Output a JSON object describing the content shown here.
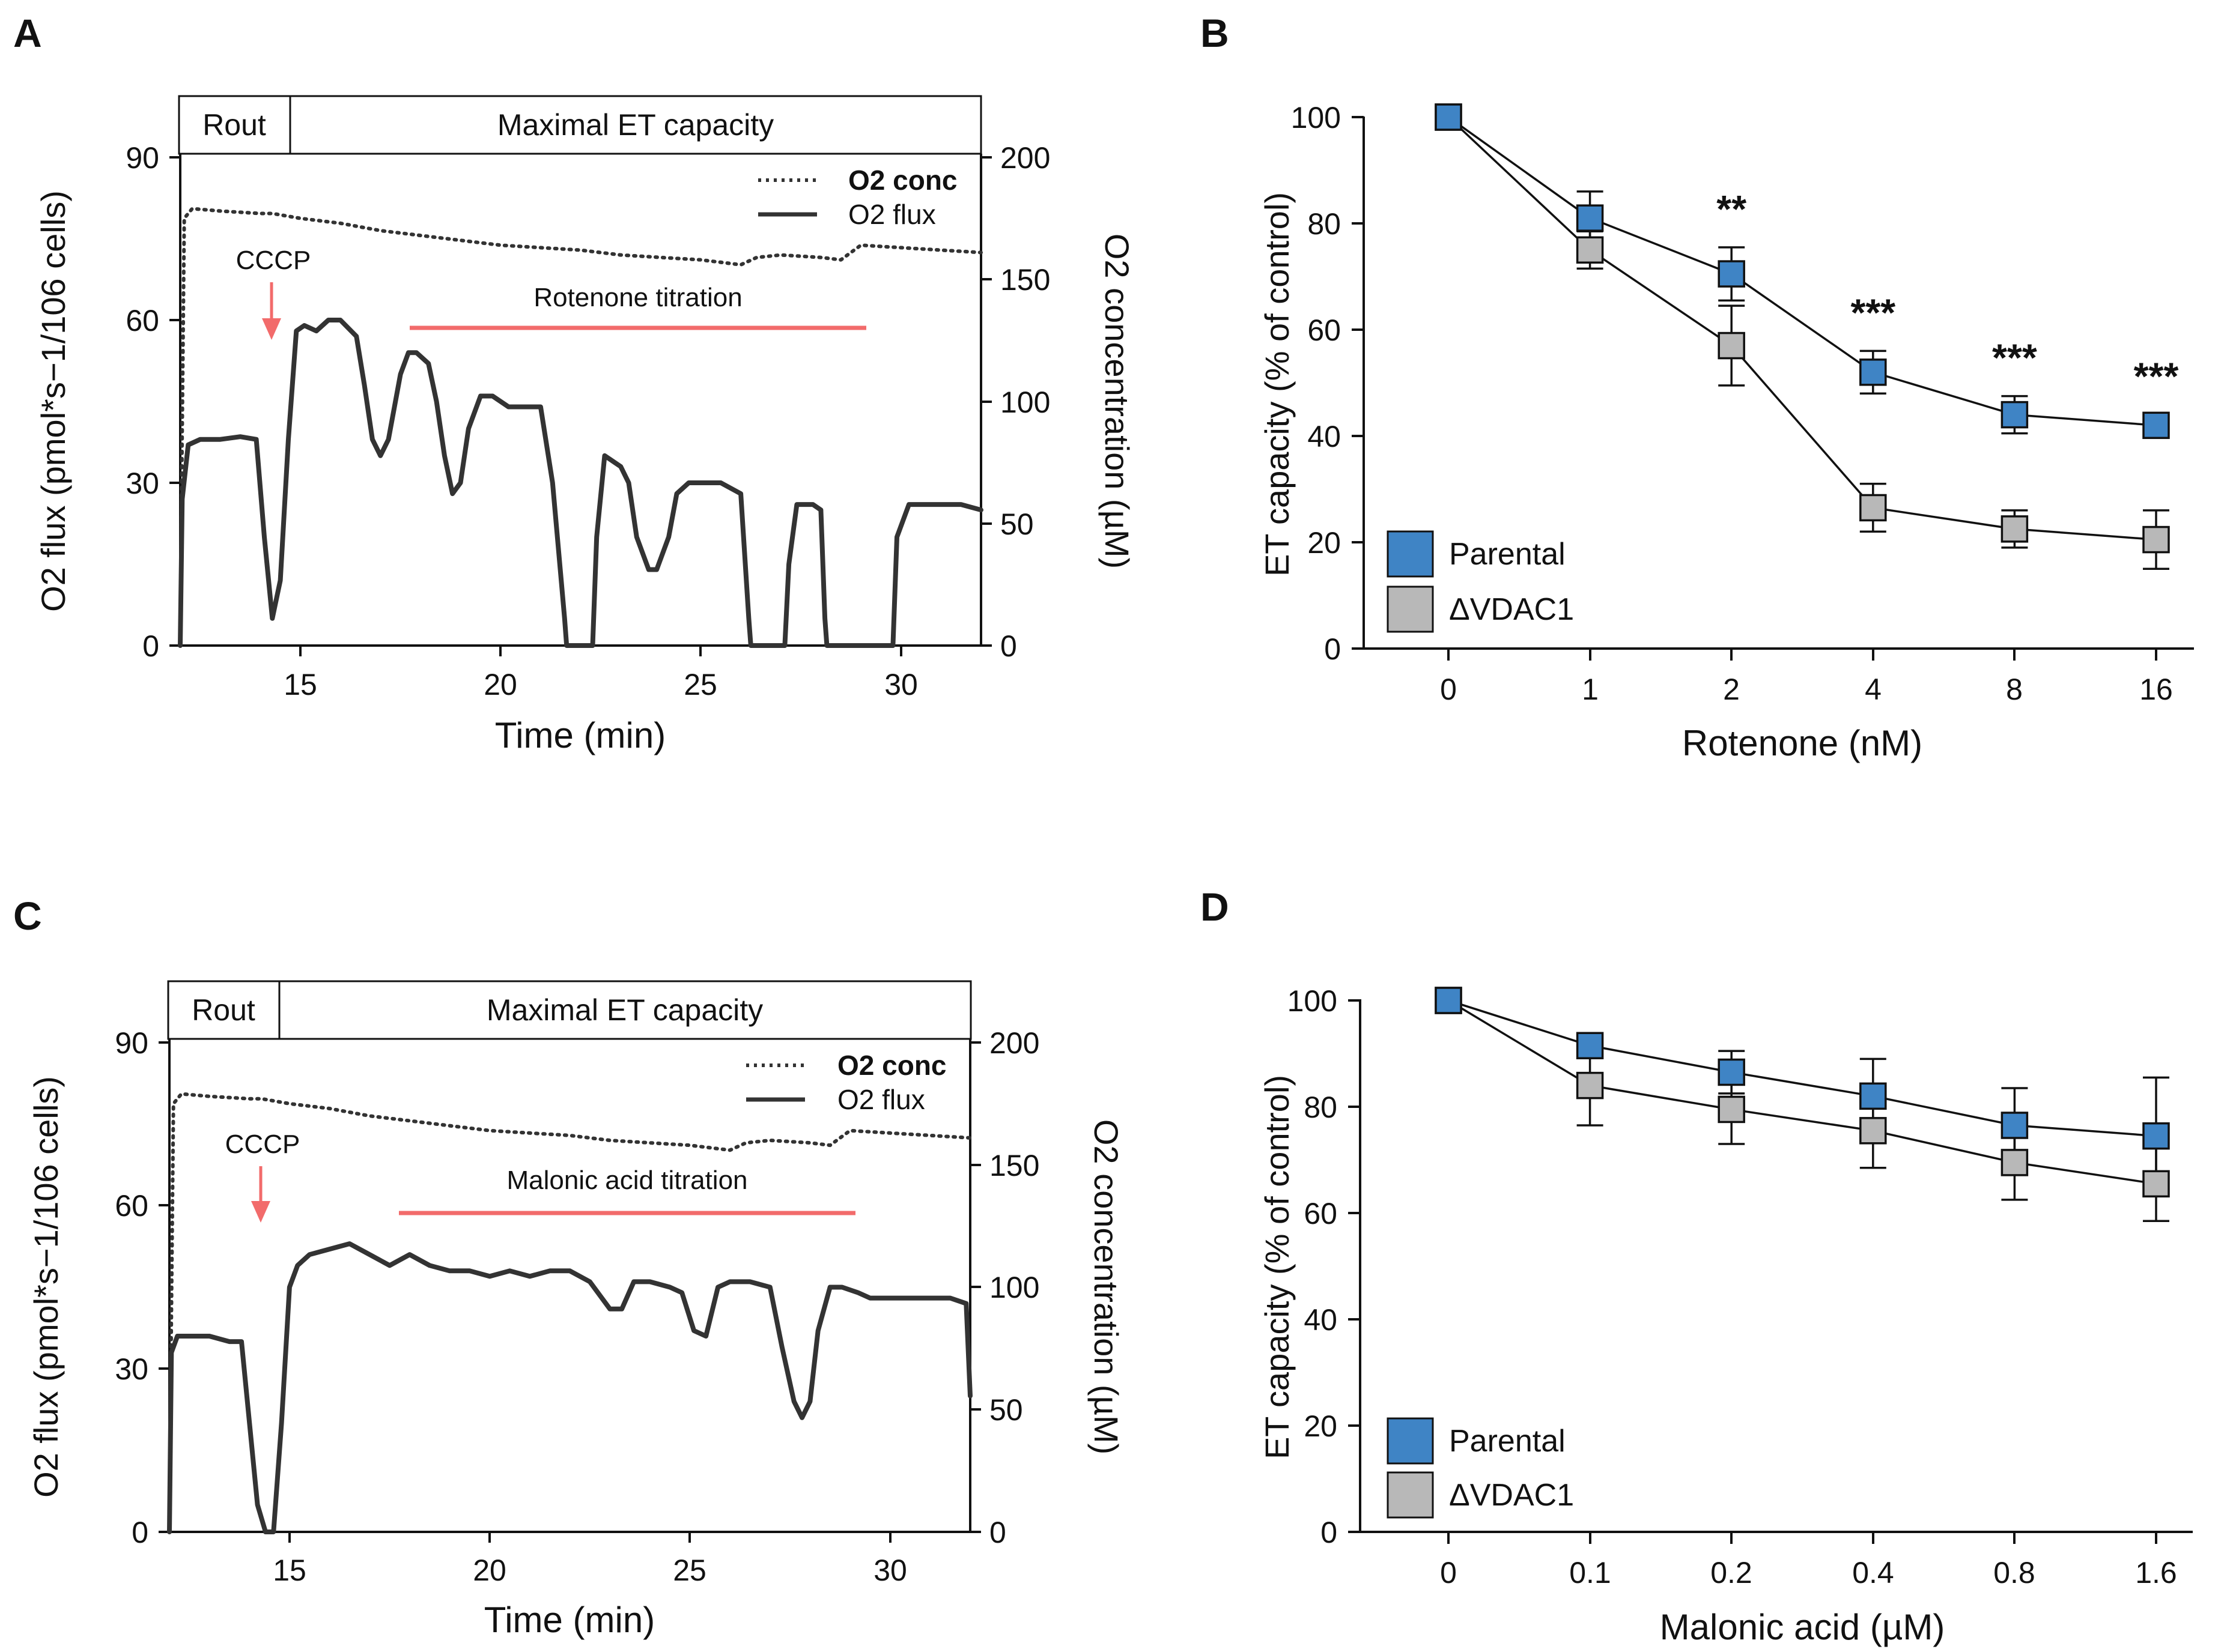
{
  "colors": {
    "axis": "#111111",
    "trace": "#333333",
    "titration": "#f26b6b",
    "parental": "#3f84c5",
    "vdac1": "#b8b8b8"
  },
  "panels": {
    "A": {
      "letter": "A",
      "phase_rout": "Rout",
      "phase_max": "Maximal ET capacity",
      "legend_conc": "O2 conc",
      "legend_flux": "O2 flux",
      "cccp_label": "CCCP",
      "titration_label": "Rotenone titration"
    },
    "B": {
      "letter": "B",
      "legend_parental": "Parental",
      "legend_vdac1": "ΔVDAC1"
    },
    "C": {
      "letter": "C",
      "phase_rout": "Rout",
      "phase_max": "Maximal ET capacity",
      "legend_conc": "O2 conc",
      "legend_flux": "O2 flux",
      "cccp_label": "CCCP",
      "titration_label": "Malonic acid titration"
    },
    "D": {
      "letter": "D",
      "legend_parental": "Parental",
      "legend_vdac1": "ΔVDAC1"
    }
  },
  "chart_data": [
    {
      "id": "A",
      "type": "line",
      "title": "",
      "xlabel": "Time (min)",
      "ylabel": "O2 flux (pmol*s−1/106 cells)",
      "y2label": "O2 concentration (µM)",
      "xlim": [
        12,
        32
      ],
      "ylim": [
        0,
        90
      ],
      "y2lim": [
        0,
        200
      ],
      "xticks": [
        15,
        20,
        25,
        30
      ],
      "yticks": [
        0,
        30,
        60,
        90
      ],
      "y2ticks": [
        0,
        50,
        100,
        150,
        200
      ],
      "phases": [
        {
          "label": "Rout",
          "start": 12,
          "end": 14.7
        },
        {
          "label": "Maximal ET capacity",
          "start": 14.7,
          "end": 32
        }
      ],
      "annotations": [
        {
          "text": "CCCP",
          "x": 14.3,
          "type": "arrow"
        },
        {
          "text": "Rotenone titration",
          "start": 17.7,
          "end": 29.1,
          "type": "bar"
        }
      ],
      "series": [
        {
          "name": "O2 flux",
          "axis": "left",
          "style": "solid",
          "x": [
            12.0,
            12.05,
            12.2,
            12.5,
            13.0,
            13.5,
            13.9,
            14.1,
            14.3,
            14.5,
            14.7,
            14.9,
            15.1,
            15.4,
            15.7,
            16.0,
            16.4,
            16.6,
            16.8,
            17.0,
            17.2,
            17.5,
            17.7,
            17.9,
            18.2,
            18.4,
            18.6,
            18.8,
            19.0,
            19.2,
            19.5,
            19.8,
            20.0,
            20.2,
            20.5,
            21.0,
            21.3,
            21.6,
            21.65,
            22.3,
            22.4,
            22.6,
            23.0,
            23.2,
            23.4,
            23.7,
            23.9,
            24.2,
            24.4,
            24.7,
            25.0,
            25.5,
            26.0,
            26.2,
            26.25,
            27.1,
            27.2,
            27.4,
            27.8,
            28.0,
            28.1,
            28.15,
            29.8,
            29.9,
            30.2,
            30.8,
            31.5,
            32.0
          ],
          "y": [
            0,
            27,
            37,
            38,
            38,
            38.5,
            38,
            20,
            5,
            12,
            38,
            58,
            59,
            58,
            60,
            60,
            57,
            48,
            38,
            35,
            38,
            50,
            54,
            54,
            52,
            45,
            35,
            28,
            30,
            40,
            46,
            46,
            45,
            44,
            44,
            44,
            30,
            5,
            0,
            0,
            20,
            35,
            33,
            30,
            20,
            14,
            14,
            20,
            28,
            30,
            30,
            30,
            28,
            5,
            0,
            0,
            15,
            26,
            26,
            25,
            5,
            0,
            0,
            20,
            26,
            26,
            26,
            25
          ]
        },
        {
          "name": "O2 conc",
          "axis": "right",
          "style": "dotted",
          "x": [
            12.0,
            12.1,
            12.3,
            13.0,
            14.0,
            14.3,
            15.0,
            16.0,
            17.0,
            18.0,
            19.0,
            20.0,
            21.0,
            22.0,
            23.0,
            24.0,
            25.0,
            26.0,
            26.4,
            27.0,
            28.0,
            28.5,
            29.0,
            30.0,
            31.0,
            32.0
          ],
          "y": [
            5,
            175,
            179,
            178,
            177,
            177,
            175,
            173,
            170,
            168,
            166,
            164,
            163,
            162,
            160,
            159,
            158,
            156,
            159,
            160,
            159,
            158,
            164,
            163,
            162,
            161
          ]
        }
      ]
    },
    {
      "id": "B",
      "type": "line",
      "title": "",
      "xlabel": "Rotenone (nM)",
      "ylabel": "ET capacity (% of control)",
      "categories": [
        "0",
        "1",
        "2",
        "4",
        "8",
        "16"
      ],
      "ylim": [
        0,
        100
      ],
      "yticks": [
        0,
        20,
        40,
        60,
        80,
        100
      ],
      "significance": [
        "",
        "",
        "**",
        "***",
        "***",
        "***"
      ],
      "series": [
        {
          "name": "Parental",
          "values": [
            100,
            81,
            70.5,
            52,
            44,
            42
          ],
          "err": [
            0,
            5,
            5,
            4,
            3.5,
            2
          ]
        },
        {
          "name": "ΔVDAC1",
          "values": [
            100,
            75,
            57,
            26.5,
            22.5,
            20.5
          ],
          "err": [
            0,
            3.5,
            7.5,
            4.5,
            3.5,
            5.5
          ]
        }
      ],
      "legend": "bottom-left"
    },
    {
      "id": "C",
      "type": "line",
      "title": "",
      "xlabel": "Time (min)",
      "ylabel": "O2 flux (pmol*s−1/106 cells)",
      "y2label": "O2 concentration (µM)",
      "xlim": [
        12,
        32
      ],
      "ylim": [
        0,
        90
      ],
      "y2lim": [
        0,
        200
      ],
      "xticks": [
        15,
        20,
        25,
        30
      ],
      "yticks": [
        0,
        30,
        60,
        90
      ],
      "y2ticks": [
        0,
        50,
        100,
        150,
        200
      ],
      "phases": [
        {
          "label": "Rout",
          "start": 12,
          "end": 14.7
        },
        {
          "label": "Maximal ET capacity",
          "start": 14.7,
          "end": 32
        }
      ],
      "annotations": [
        {
          "text": "CCCP",
          "x": 14.3,
          "type": "arrow"
        },
        {
          "text": "Malonic acid titration",
          "start": 17.7,
          "end": 29.1,
          "type": "bar"
        }
      ],
      "series": [
        {
          "name": "O2 flux",
          "axis": "left",
          "style": "solid",
          "x": [
            12.0,
            12.05,
            12.2,
            12.5,
            13.0,
            13.5,
            13.8,
            14.0,
            14.2,
            14.4,
            14.6,
            14.8,
            15.0,
            15.2,
            15.5,
            16.0,
            16.5,
            17.0,
            17.5,
            18.0,
            18.5,
            19.0,
            19.5,
            20.0,
            20.5,
            21.0,
            21.5,
            22.0,
            22.5,
            23.0,
            23.3,
            23.6,
            24.0,
            24.5,
            24.8,
            25.1,
            25.4,
            25.7,
            26.0,
            26.5,
            27.0,
            27.3,
            27.6,
            27.8,
            28.0,
            28.2,
            28.5,
            28.8,
            29.2,
            29.5,
            30.0,
            30.5,
            31.0,
            31.5,
            31.9,
            32.0
          ],
          "y": [
            0,
            33,
            36,
            36,
            36,
            35,
            35,
            20,
            5,
            0,
            0,
            20,
            45,
            49,
            51,
            52,
            53,
            51,
            49,
            51,
            49,
            48,
            48,
            47,
            48,
            47,
            48,
            48,
            46,
            41,
            41,
            46,
            46,
            45,
            44,
            37,
            36,
            45,
            46,
            46,
            45,
            34,
            24,
            21,
            24,
            37,
            45,
            45,
            44,
            43,
            43,
            43,
            43,
            43,
            42,
            25
          ]
        },
        {
          "name": "O2 conc",
          "axis": "right",
          "style": "dotted",
          "x": [
            12.0,
            12.1,
            12.3,
            13.0,
            14.0,
            14.3,
            15.0,
            16.0,
            17.0,
            18.0,
            19.0,
            20.0,
            21.0,
            22.0,
            23.0,
            24.0,
            25.0,
            26.0,
            26.4,
            27.0,
            28.0,
            28.5,
            29.0,
            30.0,
            31.0,
            32.0
          ],
          "y": [
            5,
            175,
            179,
            178,
            177,
            177,
            175,
            173,
            170,
            168,
            166,
            164,
            163,
            162,
            160,
            159,
            158,
            156,
            159,
            160,
            159,
            158,
            164,
            163,
            162,
            161
          ]
        }
      ]
    },
    {
      "id": "D",
      "type": "line",
      "title": "",
      "xlabel": "Malonic acid (µM)",
      "ylabel": "ET capacity (% of control)",
      "categories": [
        "0",
        "0.1",
        "0.2",
        "0.4",
        "0.8",
        "1.6"
      ],
      "ylim": [
        0,
        100
      ],
      "yticks": [
        0,
        20,
        40,
        60,
        80,
        100
      ],
      "significance": [
        "",
        "",
        "",
        "",
        "",
        ""
      ],
      "series": [
        {
          "name": "Parental",
          "values": [
            100,
            91.5,
            86.5,
            82,
            76.5,
            74.5
          ],
          "err": [
            0,
            2,
            4,
            7,
            7,
            11
          ]
        },
        {
          "name": "ΔVDAC1",
          "values": [
            100,
            84,
            79.5,
            75.5,
            69.5,
            65.5
          ],
          "err": [
            0,
            7.5,
            6.5,
            7,
            7,
            7
          ]
        }
      ],
      "legend": "bottom-left"
    }
  ]
}
